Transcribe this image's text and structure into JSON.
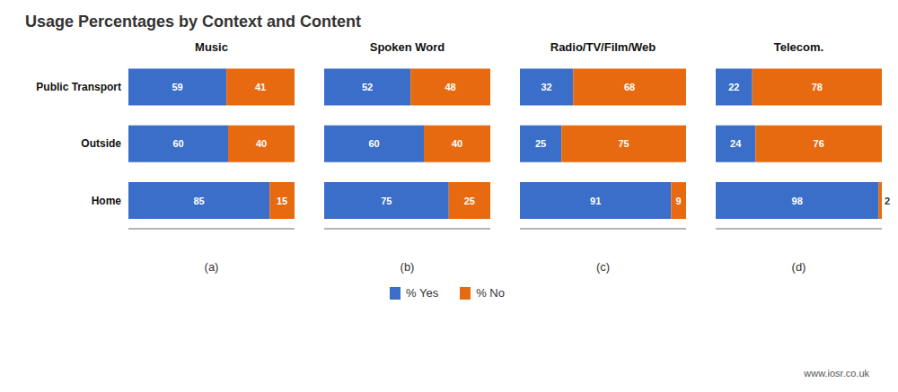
{
  "title": "Usage Percentages by Context and Content",
  "annotations": [
    "www.iosr.co.uk"
  ],
  "chart_data": [
    {
      "type": "bar",
      "title": "Music",
      "xlabel": "(a)",
      "orientation": "horizontal",
      "stacked": true,
      "data_labels": true,
      "tick_labels": "y",
      "grid": false,
      "legend": "bottom",
      "xlim": [
        0,
        100
      ],
      "categories": [
        "Public Transport",
        "Outside",
        "Home"
      ],
      "series": [
        {
          "name": "% Yes",
          "color": "#3A6EC8",
          "values": [
            59,
            60,
            85
          ]
        },
        {
          "name": "% No",
          "color": "#E86A10",
          "values": [
            41,
            40,
            15
          ]
        }
      ]
    },
    {
      "type": "bar",
      "title": "Spoken Word",
      "xlabel": "(b)",
      "orientation": "horizontal",
      "stacked": true,
      "data_labels": true,
      "tick_labels": false,
      "grid": false,
      "xlim": [
        0,
        100
      ],
      "categories": [
        "Public Transport",
        "Outside",
        "Home"
      ],
      "series": [
        {
          "name": "% Yes",
          "color": "#3A6EC8",
          "values": [
            52,
            60,
            75
          ]
        },
        {
          "name": "% No",
          "color": "#E86A10",
          "values": [
            48,
            40,
            25
          ]
        }
      ]
    },
    {
      "type": "bar",
      "title": "Radio/TV/Film/Web",
      "xlabel": "(c)",
      "orientation": "horizontal",
      "stacked": true,
      "data_labels": true,
      "tick_labels": false,
      "grid": false,
      "xlim": [
        0,
        100
      ],
      "categories": [
        "Public Transport",
        "Outside",
        "Home"
      ],
      "series": [
        {
          "name": "% Yes",
          "color": "#3A6EC8",
          "values": [
            32,
            25,
            91
          ]
        },
        {
          "name": "% No",
          "color": "#E86A10",
          "values": [
            68,
            75,
            9
          ]
        }
      ]
    },
    {
      "type": "bar",
      "title": "Telecom.",
      "xlabel": "(d)",
      "orientation": "horizontal",
      "stacked": true,
      "data_labels": true,
      "tick_labels": false,
      "grid": false,
      "xlim": [
        0,
        100
      ],
      "categories": [
        "Public Transport",
        "Outside",
        "Home"
      ],
      "series": [
        {
          "name": "% Yes",
          "color": "#3A6EC8",
          "values": [
            22,
            24,
            98
          ]
        },
        {
          "name": "% No",
          "color": "#E86A10",
          "values": [
            78,
            76,
            2
          ]
        }
      ]
    }
  ]
}
